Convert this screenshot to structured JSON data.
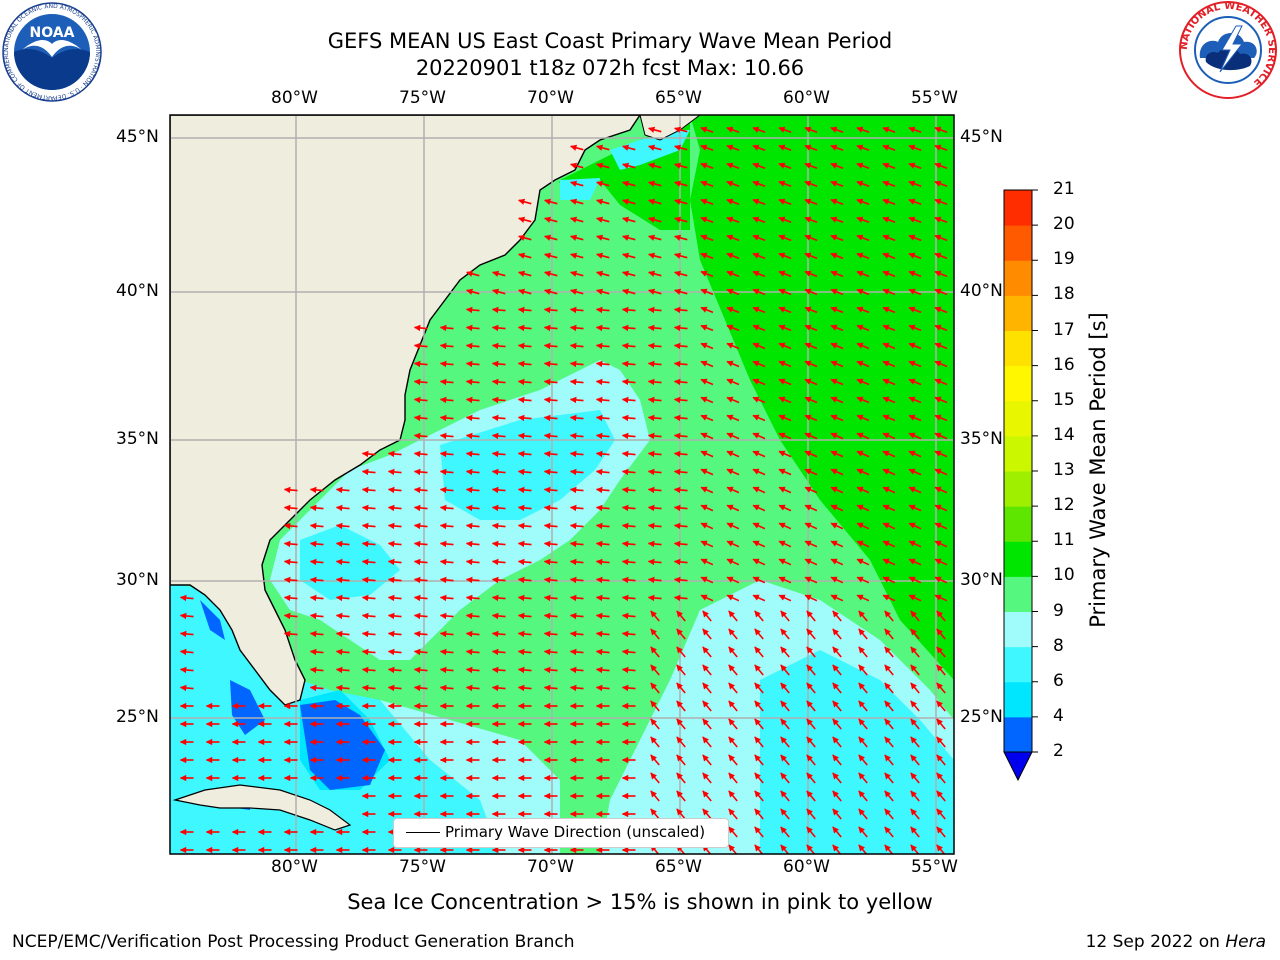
{
  "header": {
    "title_line1": "GEFS MEAN US East Coast Primary Wave Mean Period",
    "title_line2": "20220901 t18z 072h fcst   Max: 10.66",
    "noaa_logo_text": "NOAA",
    "noaa_ring_text": "NATIONAL OCEANIC AND ATMOSPHERIC ADMINISTRATION · U.S. DEPARTMENT OF COMMERCE",
    "nws_ring_text": "NATIONAL WEATHER SERVICE"
  },
  "map": {
    "lon_ticks": [
      "80°W",
      "75°W",
      "70°W",
      "65°W",
      "60°W",
      "55°W"
    ],
    "lat_ticks": [
      "45°N",
      "40°N",
      "35°N",
      "30°N",
      "25°N"
    ],
    "legend_label": "Primary Wave Direction (unscaled)",
    "land_color": "#efedde",
    "arrow_color": "#ff0000",
    "grid_color": "#b0b0b0"
  },
  "colorbar": {
    "label": "Primary Wave Mean Period [s]",
    "tick_labels": [
      "2",
      "4",
      "6",
      "8",
      "9",
      "10",
      "11",
      "12",
      "13",
      "14",
      "15",
      "16",
      "17",
      "18",
      "19",
      "20",
      "21"
    ],
    "colors": [
      "#0066ff",
      "#00e6ff",
      "#3ff7ff",
      "#a0fbfb",
      "#55f77f",
      "#00e600",
      "#5fe600",
      "#9fef00",
      "#cbf700",
      "#e8f700",
      "#fff700",
      "#ffe100",
      "#ffb400",
      "#ff8c00",
      "#ff5a00",
      "#ff2d00"
    ],
    "under_color": "#0000ee"
  },
  "notes": {
    "sea_ice": "Sea Ice Concentration > 15% is shown in pink to yellow",
    "footer_left": "NCEP/EMC/Verification Post Processing Product Generation Branch",
    "footer_date": "12 Sep 2022 on ",
    "footer_host": "Hera"
  }
}
